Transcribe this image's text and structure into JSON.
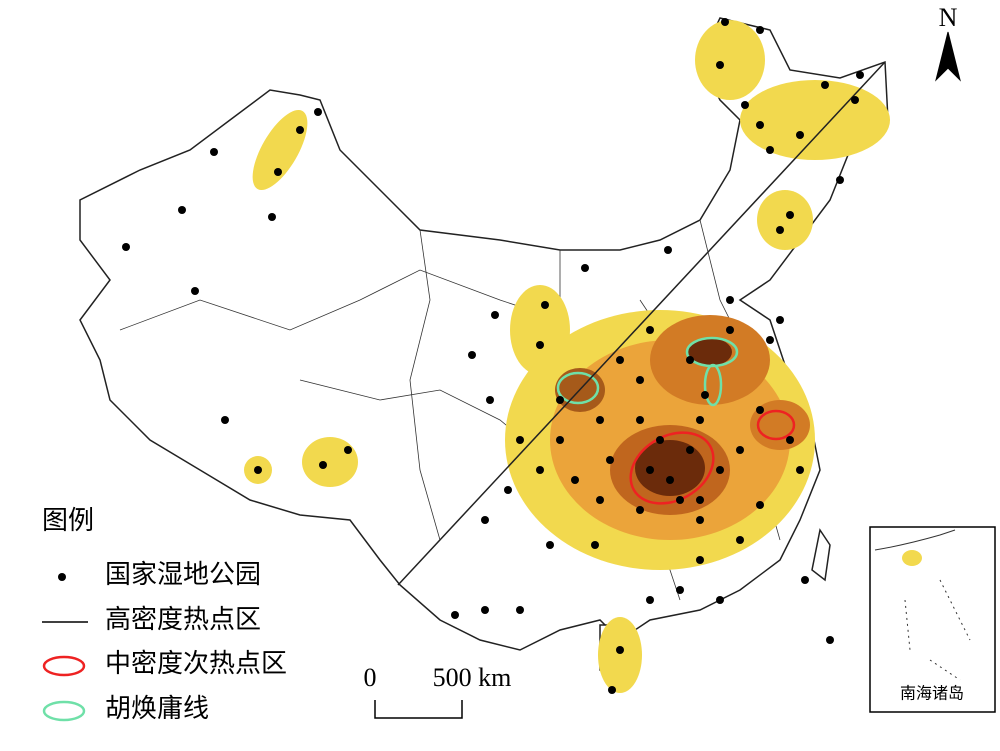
{
  "north": "N",
  "legend": {
    "title": "图例",
    "items": [
      "国家湿地公园",
      "高密度热点区",
      "中密度次热点区",
      "胡焕庸线"
    ]
  },
  "scale_bar": {
    "start": "0",
    "end": "500 km"
  },
  "inset": {
    "label": "南海诸岛"
  }
}
